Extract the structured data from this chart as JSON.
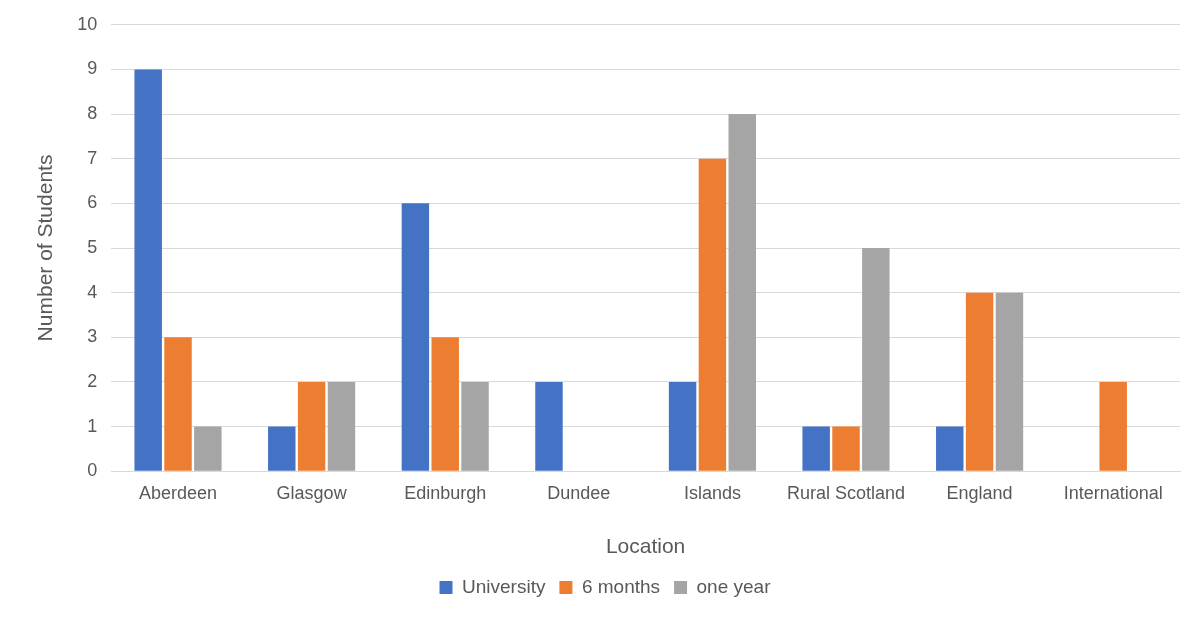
{
  "chart_data": {
    "type": "bar",
    "xlabel": "Location",
    "ylabel": "Number of Students",
    "categories": [
      "Aberdeen",
      "Glasgow",
      "Edinburgh",
      "Dundee",
      "Islands",
      "Rural Scotland",
      "England",
      "International"
    ],
    "series": [
      {
        "name": "University",
        "color": "#4472c4",
        "values": [
          9,
          1,
          6,
          2,
          2,
          1,
          1,
          0
        ]
      },
      {
        "name": "6 months",
        "color": "#ed7d31",
        "values": [
          3,
          2,
          3,
          0,
          7,
          1,
          4,
          2
        ]
      },
      {
        "name": "one year",
        "color": "#a5a5a5",
        "values": [
          1,
          2,
          2,
          0,
          8,
          5,
          4,
          0
        ]
      }
    ],
    "ylim": [
      0,
      10
    ],
    "yticks": [
      0,
      1,
      2,
      3,
      4,
      5,
      6,
      7,
      8,
      9,
      10
    ],
    "grid": "y",
    "legend": "bottom"
  }
}
